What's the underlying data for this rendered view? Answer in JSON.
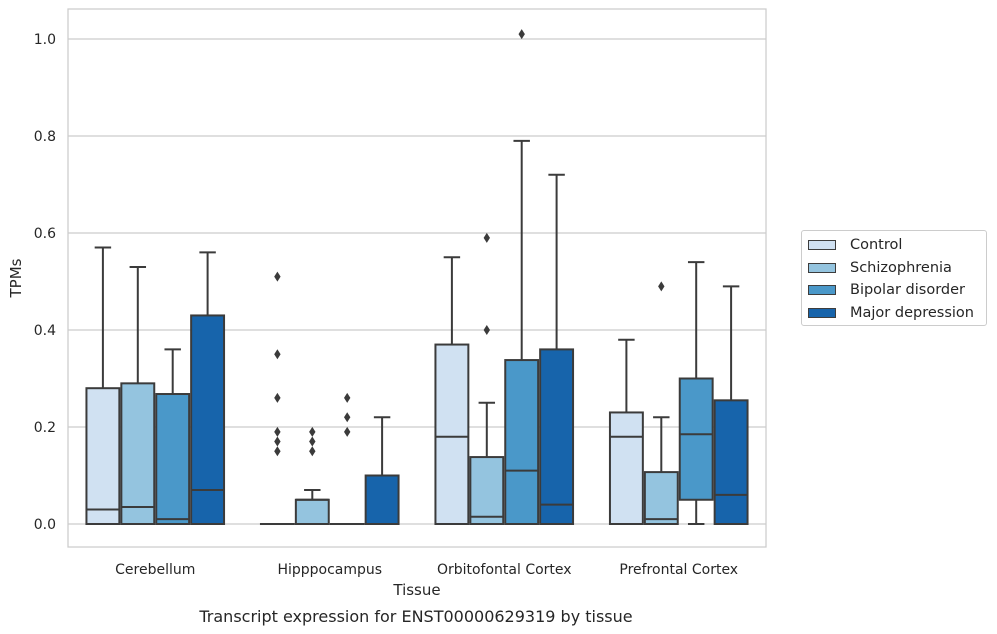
{
  "chart_data": {
    "type": "box",
    "title": "",
    "caption": "Transcript expression for ENST00000629319 by tissue",
    "xlabel": "Tissue",
    "ylabel": "TPMs",
    "ylim": [
      -0.05,
      1.06
    ],
    "yticks": [
      0.0,
      0.2,
      0.4,
      0.6,
      0.8,
      1.0
    ],
    "ytick_labels": [
      "0.0",
      "0.2",
      "0.4",
      "0.6",
      "0.8",
      "1.0"
    ],
    "grid": true,
    "legend_position": "right",
    "categories": [
      "Cerebellum",
      "Hipppocampus",
      "Orbitofontal Cortex",
      "Prefrontal Cortex"
    ],
    "series": [
      {
        "name": "Control",
        "color": "#d0e1f2",
        "boxes": [
          {
            "q1": 0.0,
            "median": 0.03,
            "q3": 0.28,
            "whislo": 0.0,
            "whishi": 0.57,
            "fliers": []
          },
          {
            "q1": 0.0,
            "median": 0.0,
            "q3": 0.0,
            "whislo": 0.0,
            "whishi": 0.0,
            "fliers": [
              0.15,
              0.17,
              0.19,
              0.26,
              0.35,
              0.51
            ]
          },
          {
            "q1": 0.0,
            "median": 0.18,
            "q3": 0.37,
            "whislo": 0.0,
            "whishi": 0.55,
            "fliers": []
          },
          {
            "q1": 0.0,
            "median": 0.18,
            "q3": 0.23,
            "whislo": 0.0,
            "whishi": 0.38,
            "fliers": []
          }
        ]
      },
      {
        "name": "Schizophrenia",
        "color": "#94c4df",
        "boxes": [
          {
            "q1": 0.0,
            "median": 0.035,
            "q3": 0.29,
            "whislo": 0.0,
            "whishi": 0.53,
            "fliers": []
          },
          {
            "q1": 0.0,
            "median": 0.05,
            "q3": 0.05,
            "whislo": 0.0,
            "whishi": 0.07,
            "fliers": [
              0.15,
              0.17,
              0.19
            ]
          },
          {
            "q1": 0.0,
            "median": 0.015,
            "q3": 0.138,
            "whislo": 0.0,
            "whishi": 0.25,
            "fliers": [
              0.4,
              0.59
            ]
          },
          {
            "q1": 0.0,
            "median": 0.01,
            "q3": 0.107,
            "whislo": 0.0,
            "whishi": 0.22,
            "fliers": [
              0.49
            ]
          }
        ]
      },
      {
        "name": "Bipolar disorder",
        "color": "#4a98c9",
        "boxes": [
          {
            "q1": 0.0,
            "median": 0.01,
            "q3": 0.268,
            "whislo": 0.0,
            "whishi": 0.36,
            "fliers": []
          },
          {
            "q1": 0.0,
            "median": 0.0,
            "q3": 0.0,
            "whislo": 0.0,
            "whishi": 0.0,
            "fliers": [
              0.19,
              0.22,
              0.26
            ]
          },
          {
            "q1": 0.0,
            "median": 0.11,
            "q3": 0.338,
            "whislo": 0.0,
            "whishi": 0.79,
            "fliers": [
              1.01
            ]
          },
          {
            "q1": 0.05,
            "median": 0.185,
            "q3": 0.3,
            "whislo": 0.0,
            "whishi": 0.54,
            "fliers": []
          }
        ]
      },
      {
        "name": "Major depression",
        "color": "#1764ab",
        "boxes": [
          {
            "q1": 0.0,
            "median": 0.07,
            "q3": 0.43,
            "whislo": 0.0,
            "whishi": 0.56,
            "fliers": []
          },
          {
            "q1": 0.0,
            "median": 0.0,
            "q3": 0.1,
            "whislo": 0.0,
            "whishi": 0.22,
            "fliers": []
          },
          {
            "q1": 0.0,
            "median": 0.04,
            "q3": 0.36,
            "whislo": 0.0,
            "whishi": 0.72,
            "fliers": []
          },
          {
            "q1": 0.0,
            "median": 0.06,
            "q3": 0.255,
            "whislo": 0.0,
            "whishi": 0.49,
            "fliers": []
          }
        ]
      }
    ]
  }
}
